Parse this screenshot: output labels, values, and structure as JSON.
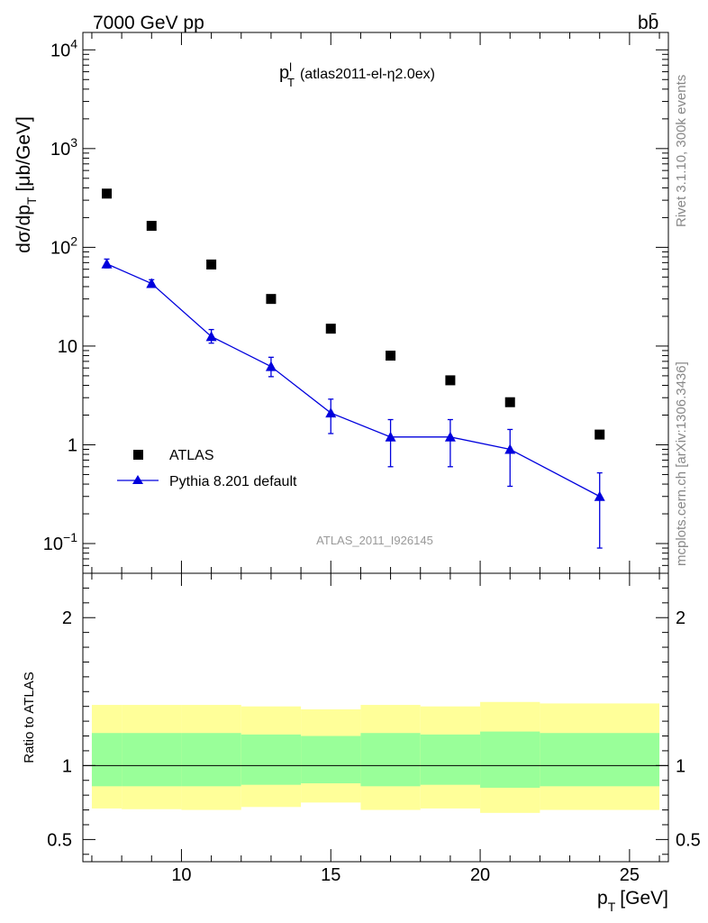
{
  "header": {
    "energy_label": "7000 GeV pp",
    "process_label": "bb̄"
  },
  "side_labels": {
    "rivet": "Rivet 3.1.10,  300k events",
    "mcplots": "mcplots.cern.ch [arXiv:1306.3436]"
  },
  "colors": {
    "atlas": "#000000",
    "pythia": "#0000dd",
    "band_inner": "#99ff99",
    "band_outer": "#ffff99",
    "watermark": "#999999"
  },
  "chart_data": [
    {
      "type": "scatter",
      "panel": "main",
      "title_main": "p",
      "title_sup": "l",
      "title_sub": "T",
      "title_rest": "(atlas2011-el-η2.0ex)",
      "ylabel": "dσ/dp_T [μb/GeV]",
      "ylabel_main": "dσ/dp",
      "ylabel_sub": "T",
      "ylabel_unit": "[μb/GeV]",
      "watermark": "ATLAS_2011_I926145",
      "yscale": "log",
      "ylim": [
        0.05,
        15000
      ],
      "xlim": [
        6.7,
        26.3
      ],
      "y_ticks": [
        {
          "v": 10000,
          "base": "10",
          "exp": "4"
        },
        {
          "v": 1000,
          "base": "10",
          "exp": "3"
        },
        {
          "v": 100,
          "base": "10",
          "exp": "2"
        },
        {
          "v": 10,
          "base": "10",
          "exp": ""
        },
        {
          "v": 1,
          "base": "1",
          "exp": ""
        },
        {
          "v": 0.1,
          "base": "10",
          "exp": "−1"
        }
      ],
      "legend_position": "lower-left",
      "series": [
        {
          "name": "ATLAS",
          "marker": "square",
          "x": [
            7.5,
            9,
            11,
            13,
            15,
            17,
            19,
            21,
            24
          ],
          "y": [
            350,
            165,
            67,
            30,
            15,
            8,
            4.5,
            2.7,
            1.27
          ]
        },
        {
          "name": "Pythia 8.201 default",
          "marker": "triangle",
          "x": [
            7.5,
            9,
            11,
            13,
            15,
            17,
            19,
            21,
            24
          ],
          "y": [
            68,
            43,
            12.5,
            6.2,
            2.1,
            1.2,
            1.2,
            0.9,
            0.3
          ],
          "yerr_lo": [
            6,
            3,
            1.8,
            1.3,
            0.8,
            0.6,
            0.6,
            0.52,
            0.21
          ],
          "yerr_hi": [
            8,
            4,
            2.2,
            1.5,
            0.8,
            0.6,
            0.6,
            0.53,
            0.22
          ]
        }
      ]
    },
    {
      "type": "area",
      "panel": "ratio",
      "ylabel": "Ratio to ATLAS",
      "xlabel": "p_T [GeV]",
      "xlabel_main": "p",
      "xlabel_sub": "T",
      "xlabel_unit": "[GeV]",
      "ylim": [
        0.35,
        2.3
      ],
      "xlim": [
        6.7,
        26.3
      ],
      "y_ticks": [
        {
          "v": 0.5,
          "label": "0.5"
        },
        {
          "v": 1,
          "label": "1"
        },
        {
          "v": 2,
          "label": "2"
        }
      ],
      "x_ticks": [
        10,
        15,
        20,
        25
      ],
      "bins": [
        {
          "lo": 7,
          "hi": 8,
          "outer": [
            0.71,
            1.41
          ],
          "inner": [
            0.86,
            1.22
          ]
        },
        {
          "lo": 8,
          "hi": 10,
          "outer": [
            0.705,
            1.41
          ],
          "inner": [
            0.86,
            1.22
          ]
        },
        {
          "lo": 10,
          "hi": 12,
          "outer": [
            0.7,
            1.41
          ],
          "inner": [
            0.86,
            1.22
          ]
        },
        {
          "lo": 12,
          "hi": 14,
          "outer": [
            0.72,
            1.4
          ],
          "inner": [
            0.87,
            1.21
          ]
        },
        {
          "lo": 14,
          "hi": 16,
          "outer": [
            0.75,
            1.38
          ],
          "inner": [
            0.88,
            1.2
          ]
        },
        {
          "lo": 16,
          "hi": 18,
          "outer": [
            0.7,
            1.41
          ],
          "inner": [
            0.86,
            1.22
          ]
        },
        {
          "lo": 18,
          "hi": 20,
          "outer": [
            0.71,
            1.4
          ],
          "inner": [
            0.87,
            1.21
          ]
        },
        {
          "lo": 20,
          "hi": 22,
          "outer": [
            0.68,
            1.43
          ],
          "inner": [
            0.85,
            1.23
          ]
        },
        {
          "lo": 22,
          "hi": 26,
          "outer": [
            0.7,
            1.42
          ],
          "inner": [
            0.86,
            1.22
          ]
        }
      ],
      "reference_line": 1
    }
  ]
}
